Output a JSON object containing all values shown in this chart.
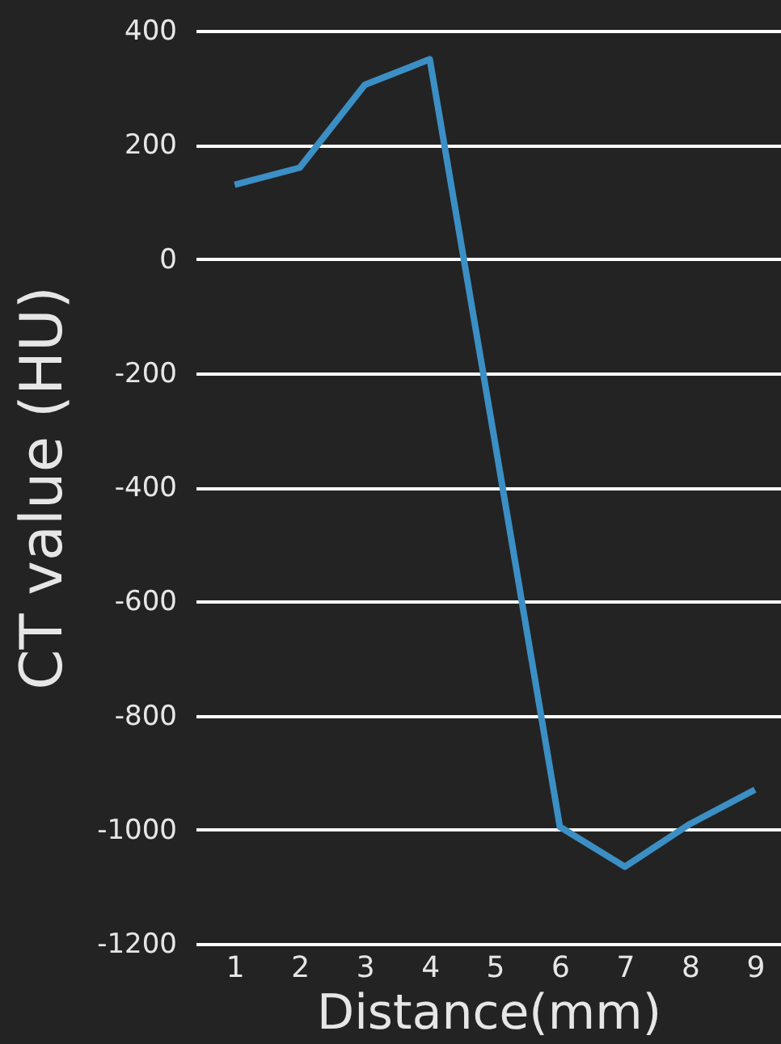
{
  "chart_data": {
    "type": "line",
    "xlabel": "Distance(mm)",
    "ylabel": "CT value (HU)",
    "x": [
      1,
      2,
      3,
      4,
      5,
      6,
      7,
      8,
      9
    ],
    "series": [
      {
        "color": "#3b8fc4",
        "values": [
          130,
          160,
          305,
          350,
          -320,
          -995,
          -1065,
          -990,
          -930
        ]
      }
    ],
    "xlim": [
      0.4,
      9.4
    ],
    "xticks": [
      1,
      2,
      3,
      4,
      5,
      6,
      7,
      8,
      9
    ],
    "ylim": [
      -1200,
      400
    ],
    "yticks": [
      -1200,
      -1000,
      -800,
      -600,
      -400,
      -200,
      0,
      200,
      400
    ],
    "grid": "y",
    "marker": "none",
    "line_style": "solid"
  }
}
